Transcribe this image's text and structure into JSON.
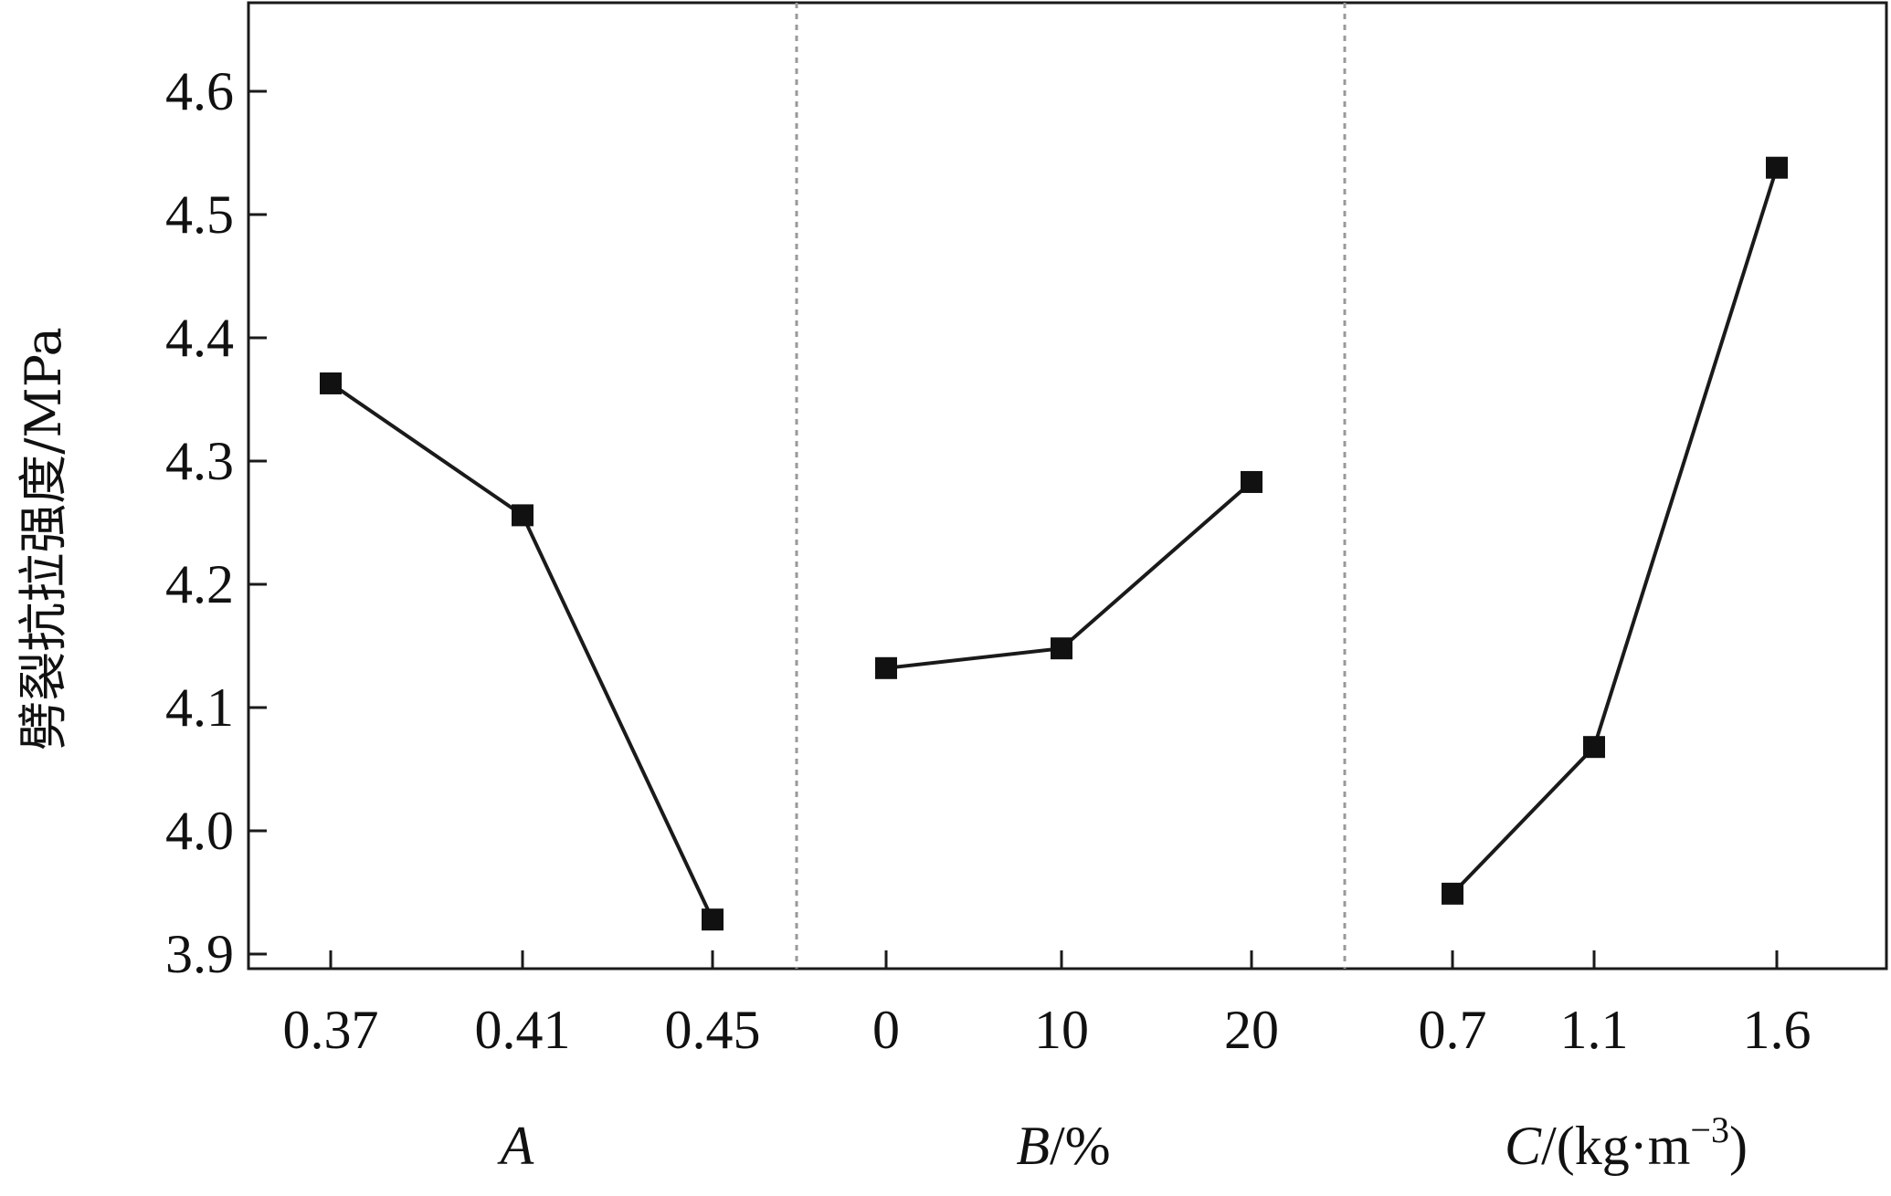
{
  "chart_data": {
    "type": "line",
    "ylabel": "劈裂抗拉强度/MPa",
    "ylim": [
      3.88,
      4.67
    ],
    "yticks": [
      "3.9",
      "4.0",
      "4.1",
      "4.2",
      "4.3",
      "4.4",
      "4.5",
      "4.6"
    ],
    "panels": [
      {
        "factor": "A",
        "xlabel_main": "A",
        "xlabel_unit": "",
        "xlabel_sup": "",
        "categories": [
          "0.37",
          "0.41",
          "0.45"
        ],
        "values": [
          4.363,
          4.256,
          3.928
        ]
      },
      {
        "factor": "B",
        "xlabel_main": "B",
        "xlabel_unit": "/%",
        "xlabel_sup": "",
        "categories": [
          "0",
          "10",
          "20"
        ],
        "values": [
          4.132,
          4.148,
          4.283
        ]
      },
      {
        "factor": "C",
        "xlabel_main": "C",
        "xlabel_unit": "/(kg·m",
        "xlabel_sup": "−3",
        "categories": [
          "0.7",
          "1.1",
          "1.6"
        ],
        "values": [
          3.949,
          4.068,
          4.538
        ]
      }
    ],
    "colors": {
      "line": "#1a1a1a",
      "marker": "#111111",
      "divider": "#999999"
    }
  }
}
